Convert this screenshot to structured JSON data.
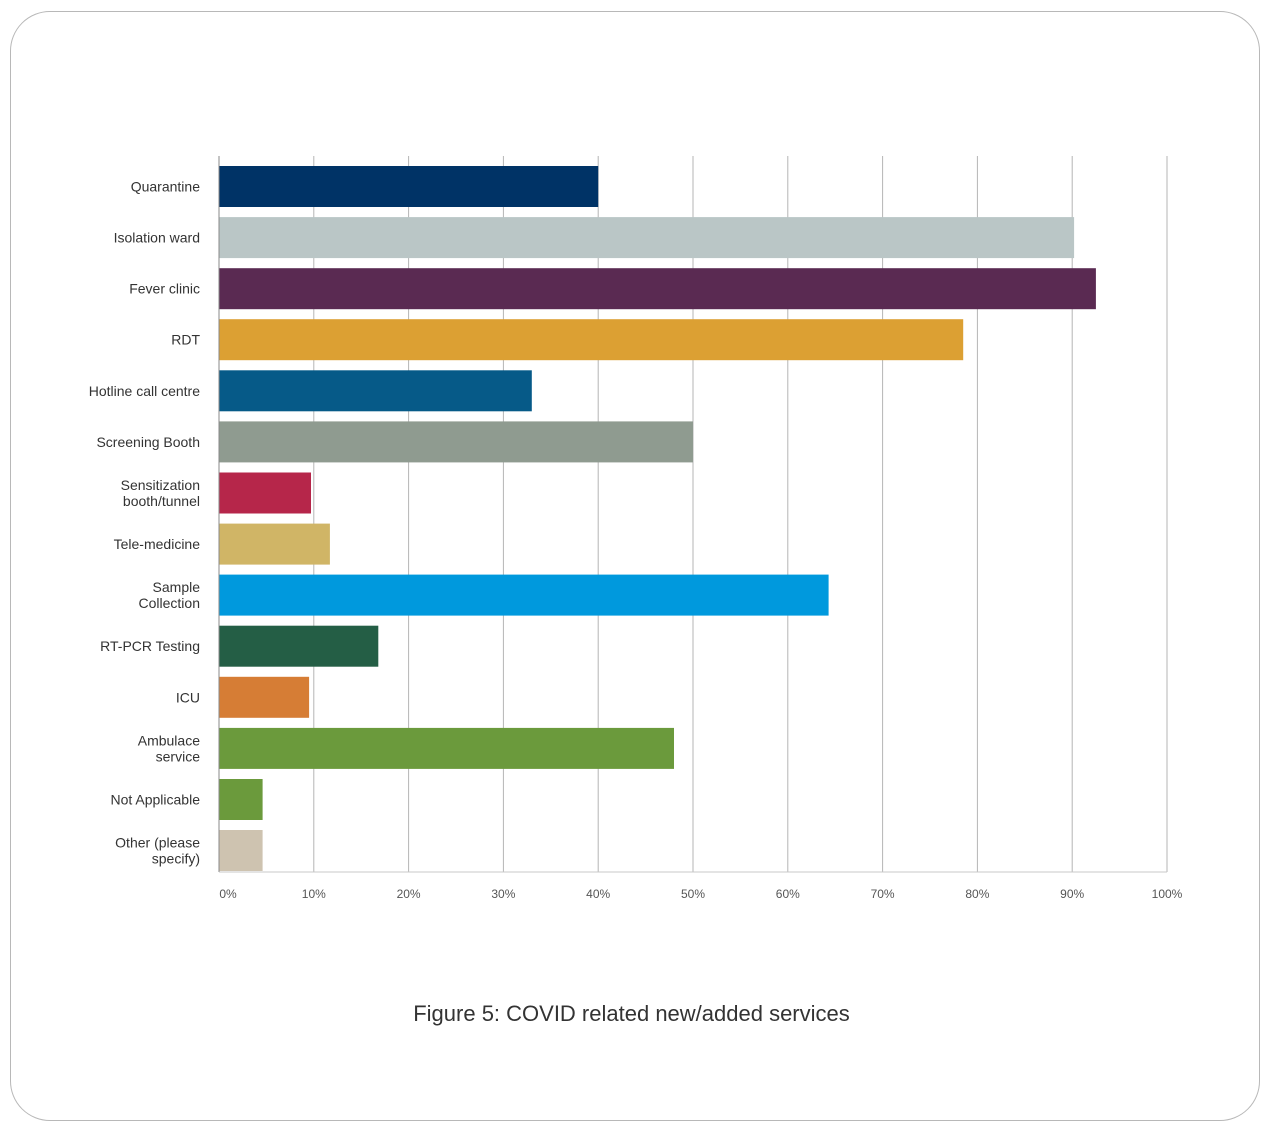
{
  "caption": "Figure 5: COVID related new/added services",
  "chart_data": {
    "type": "bar",
    "orientation": "horizontal",
    "categories": [
      [
        "Quarantine"
      ],
      [
        "Isolation ward"
      ],
      [
        "Fever clinic"
      ],
      [
        "RDT"
      ],
      [
        "Hotline call centre"
      ],
      [
        "Screening Booth"
      ],
      [
        "Sensitization",
        "booth/tunnel"
      ],
      [
        "Tele-medicine"
      ],
      [
        "Sample",
        "Collection"
      ],
      [
        "RT-PCR Testing"
      ],
      [
        "ICU"
      ],
      [
        "Ambulace",
        "service"
      ],
      [
        "Not Applicable"
      ],
      [
        "Other (please",
        "specify)"
      ]
    ],
    "values": [
      40,
      90.2,
      92.5,
      78.5,
      33,
      50,
      9.7,
      11.7,
      64.3,
      16.8,
      9.5,
      48,
      4.6,
      4.6
    ],
    "colors": [
      "#003366",
      "#bac6c6",
      "#5a2a52",
      "#dca033",
      "#065a88",
      "#8f9b90",
      "#b6264a",
      "#d0b566",
      "#0099dd",
      "#245e45",
      "#d67d35",
      "#6b9a3c",
      "#6b9a3c",
      "#cec3b0"
    ],
    "xlim": [
      0,
      100
    ],
    "xticks": [
      "0%",
      "10%",
      "20%",
      "30%",
      "40%",
      "50%",
      "60%",
      "70%",
      "80%",
      "90%",
      "100%"
    ],
    "grid": true,
    "xlabel": "",
    "ylabel": "",
    "title": ""
  }
}
